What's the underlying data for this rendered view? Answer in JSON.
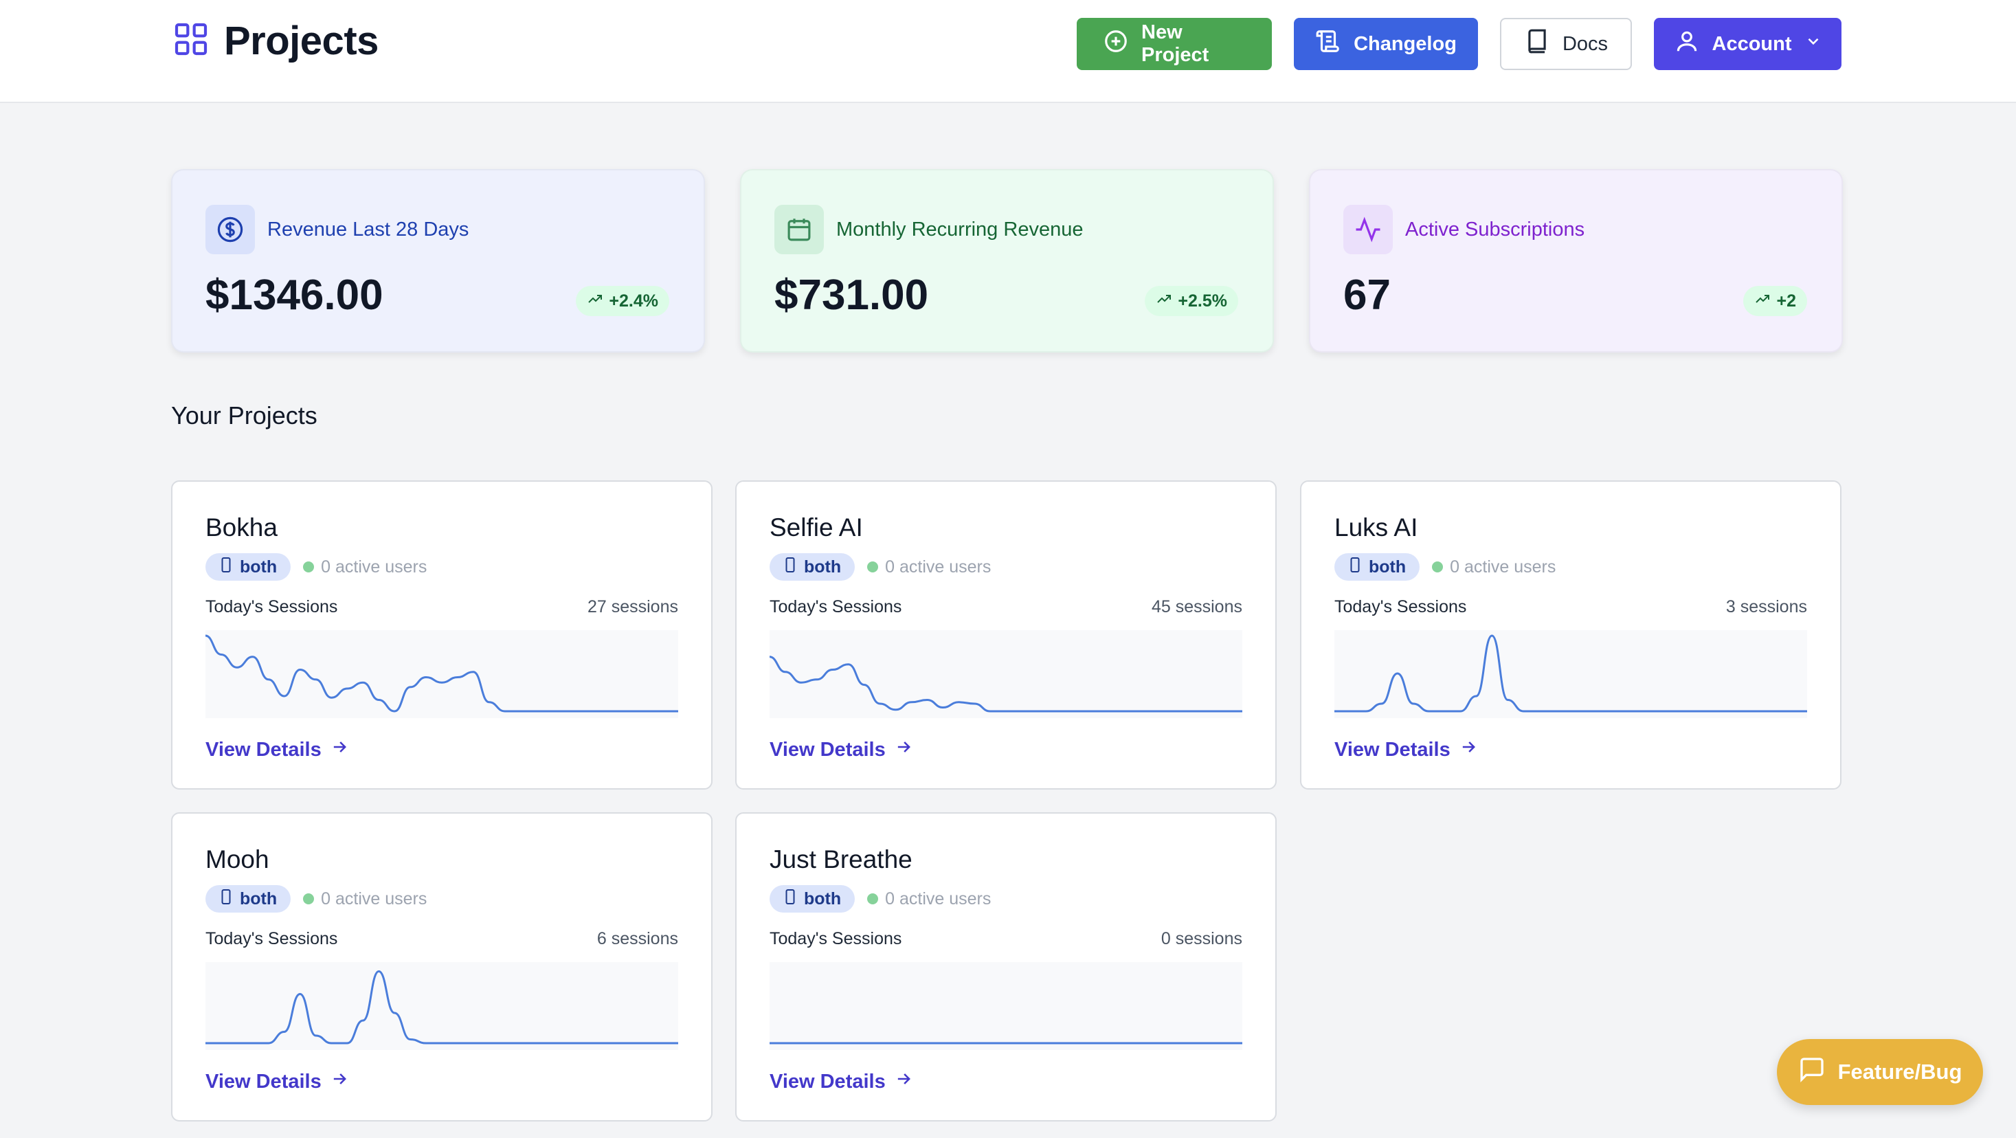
{
  "header": {
    "title": "Projects",
    "buttons": {
      "new_project": "New Project",
      "changelog": "Changelog",
      "docs": "Docs",
      "account": "Account"
    }
  },
  "stats": [
    {
      "label": "Revenue Last 28 Days",
      "value": "$1346.00",
      "trend": "+2.4%",
      "icon": "dollar-icon"
    },
    {
      "label": "Monthly Recurring Revenue",
      "value": "$731.00",
      "trend": "+2.5%",
      "icon": "calendar-icon"
    },
    {
      "label": "Active Subscriptions",
      "value": "67",
      "trend": "+2",
      "icon": "activity-icon"
    }
  ],
  "section_title": "Your Projects",
  "projects": [
    {
      "name": "Bokha",
      "platform": "both",
      "active_users": "0 active users",
      "sessions_label": "Today's Sessions",
      "sessions": "27 sessions",
      "details": "View Details",
      "spark": [
        1.0,
        0.75,
        0.58,
        0.72,
        0.42,
        0.2,
        0.55,
        0.42,
        0.18,
        0.3,
        0.38,
        0.15,
        0.0,
        0.32,
        0.45,
        0.38,
        0.45,
        0.52,
        0.12,
        0,
        0,
        0,
        0,
        0,
        0,
        0,
        0,
        0,
        0,
        0,
        0
      ]
    },
    {
      "name": "Selfie AI",
      "platform": "both",
      "active_users": "0 active users",
      "sessions_label": "Today's Sessions",
      "sessions": "45 sessions",
      "details": "View Details",
      "spark": [
        0.72,
        0.52,
        0.38,
        0.42,
        0.55,
        0.62,
        0.35,
        0.1,
        0.02,
        0.12,
        0.15,
        0.05,
        0.12,
        0.1,
        0.0,
        0,
        0,
        0,
        0,
        0,
        0,
        0,
        0,
        0,
        0,
        0,
        0,
        0,
        0,
        0,
        0
      ]
    },
    {
      "name": "Luks AI",
      "platform": "both",
      "active_users": "0 active users",
      "sessions_label": "Today's Sessions",
      "sessions": "3 sessions",
      "details": "View Details",
      "spark": [
        0,
        0,
        0,
        0.1,
        0.5,
        0.1,
        0,
        0,
        0,
        0.2,
        1.0,
        0.15,
        0,
        0,
        0,
        0,
        0,
        0,
        0,
        0,
        0,
        0,
        0,
        0,
        0,
        0,
        0,
        0,
        0,
        0,
        0
      ]
    },
    {
      "name": "Mooh",
      "platform": "both",
      "active_users": "0 active users",
      "sessions_label": "Today's Sessions",
      "sessions": "6 sessions",
      "details": "View Details",
      "spark": [
        0,
        0,
        0,
        0,
        0,
        0.15,
        0.65,
        0.1,
        0,
        0,
        0.3,
        0.95,
        0.4,
        0.05,
        0,
        0,
        0,
        0,
        0,
        0,
        0,
        0,
        0,
        0,
        0,
        0,
        0,
        0,
        0,
        0,
        0
      ]
    },
    {
      "name": "Just Breathe",
      "platform": "both",
      "active_users": "0 active users",
      "sessions_label": "Today's Sessions",
      "sessions": "0 sessions",
      "details": "View Details",
      "spark": [
        0,
        0,
        0,
        0,
        0,
        0,
        0,
        0,
        0,
        0,
        0,
        0,
        0,
        0,
        0,
        0,
        0,
        0,
        0,
        0,
        0,
        0,
        0,
        0,
        0,
        0,
        0,
        0,
        0,
        0,
        0
      ]
    }
  ],
  "fab": {
    "label": "Feature/Bug"
  },
  "colors": {
    "green_button": "#4aa552",
    "blue_button": "#3b63e0",
    "purple_button": "#4f46e5",
    "link": "#4338ca",
    "spark_line": "#4a7ddb",
    "fab": "#e9b43e"
  }
}
